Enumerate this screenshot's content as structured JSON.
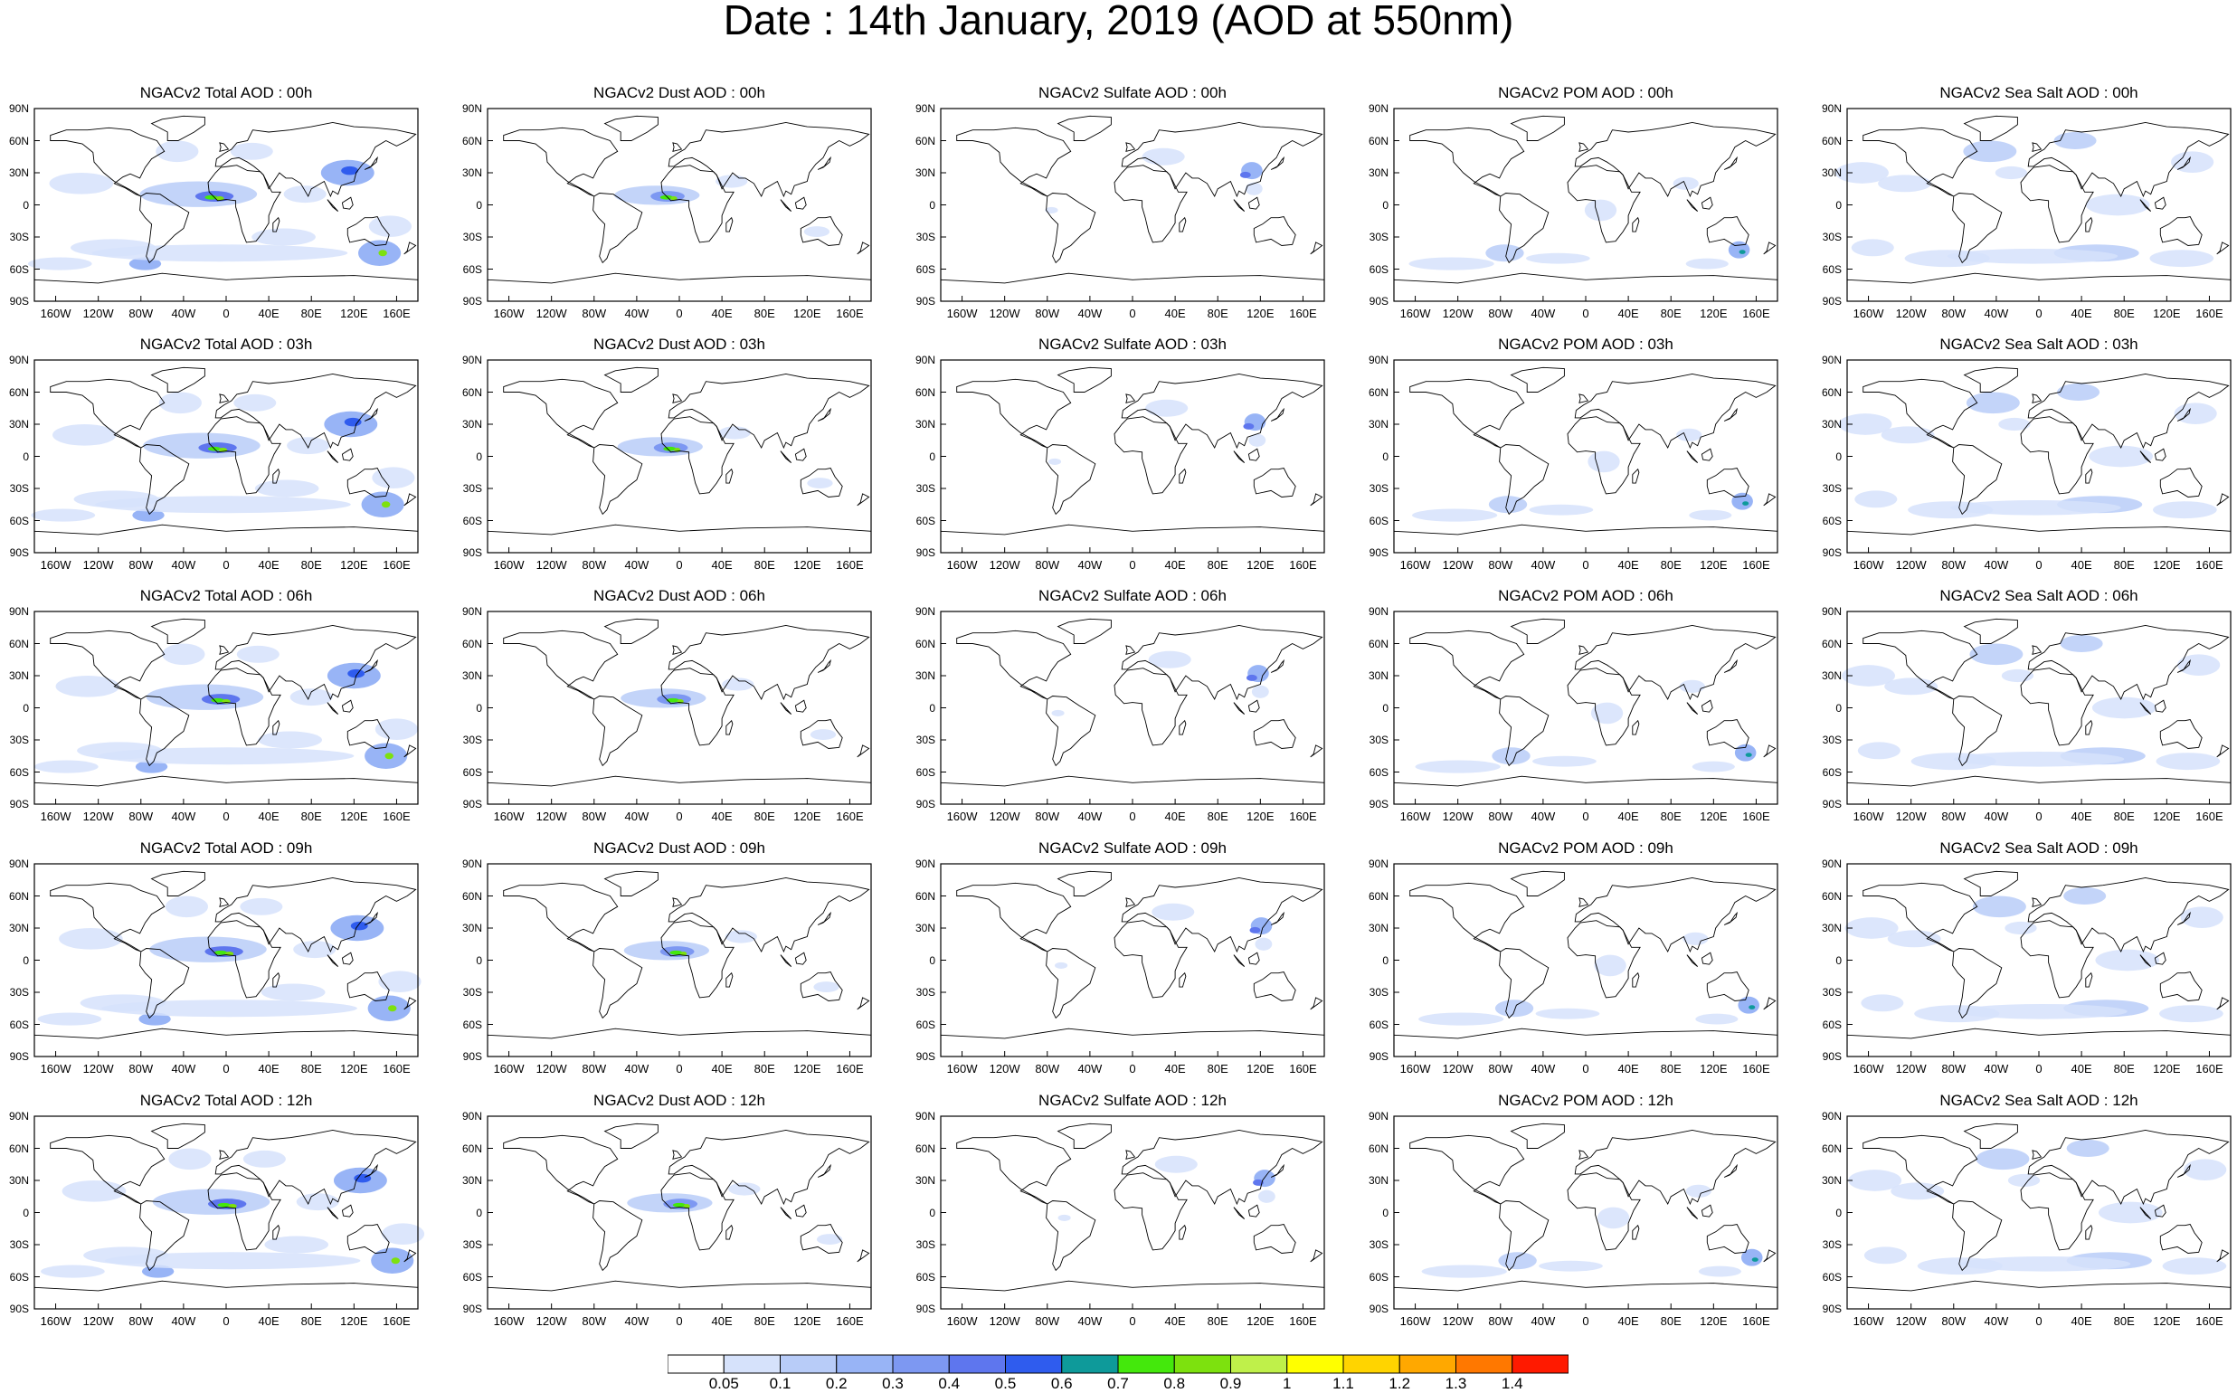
{
  "title": "Date : 14th January, 2019 (AOD at 550nm)",
  "columns": [
    "Total",
    "Dust",
    "Sulfate",
    "POM",
    "Sea Salt"
  ],
  "panel_titles": [
    [
      "NGACv2 Total AOD : 00h",
      "NGACv2 Dust AOD : 00h",
      "NGACv2 Sulfate AOD : 00h",
      "NGACv2 POM AOD : 00h",
      "NGACv2 Sea Salt AOD : 00h"
    ],
    [
      "NGACv2 Total AOD : 03h",
      "NGACv2 Dust AOD : 03h",
      "NGACv2 Sulfate AOD : 03h",
      "NGACv2 POM AOD : 03h",
      "NGACv2 Sea Salt AOD : 03h"
    ],
    [
      "NGACv2 Total AOD : 06h",
      "NGACv2 Dust AOD : 06h",
      "NGACv2 Sulfate AOD : 06h",
      "NGACv2 POM AOD : 06h",
      "NGACv2 Sea Salt AOD : 06h"
    ],
    [
      "NGACv2 Total AOD : 09h",
      "NGACv2 Dust AOD : 09h",
      "NGACv2 Sulfate AOD : 09h",
      "NGACv2 POM AOD : 09h",
      "NGACv2 Sea Salt  AOD : 09h"
    ],
    [
      "NGACv2 Total AOD  : 12h",
      "NGACv2 Dust AOD : 12h",
      "NGACv2 Sulfate AOD : 12h",
      "NGACv2 POM  AOD : 12h",
      "NGACv2 Sea Salt AOD : 12h"
    ]
  ],
  "lat_ticks": [
    "90N",
    "60N",
    "30N",
    "0",
    "30S",
    "60S",
    "90S"
  ],
  "lon_ticks": [
    "160W",
    "120W",
    "80W",
    "40W",
    "0",
    "40E",
    "80E",
    "120E",
    "160E"
  ],
  "lon_tick_values": [
    -160,
    -120,
    -80,
    -40,
    0,
    40,
    80,
    120,
    160
  ],
  "lat_tick_values": [
    90,
    60,
    30,
    0,
    -30,
    -60,
    -90
  ],
  "colorbar": {
    "labels": [
      "0.05",
      "0.1",
      "0.2",
      "0.3",
      "0.4",
      "0.5",
      "0.6",
      "0.7",
      "0.8",
      "0.9",
      "1",
      "1.1",
      "1.2",
      "1.3",
      "1.4"
    ],
    "colors": [
      "#ffffff",
      "#d6e2fb",
      "#b8ccf8",
      "#98b4f6",
      "#7d98f2",
      "#5e76ee",
      "#2f5cee",
      "#0e9a9a",
      "#44e80c",
      "#7de10e",
      "#bff04a",
      "#ffff00",
      "#ffd400",
      "#ffa800",
      "#ff7800",
      "#ff1a00"
    ]
  }
}
